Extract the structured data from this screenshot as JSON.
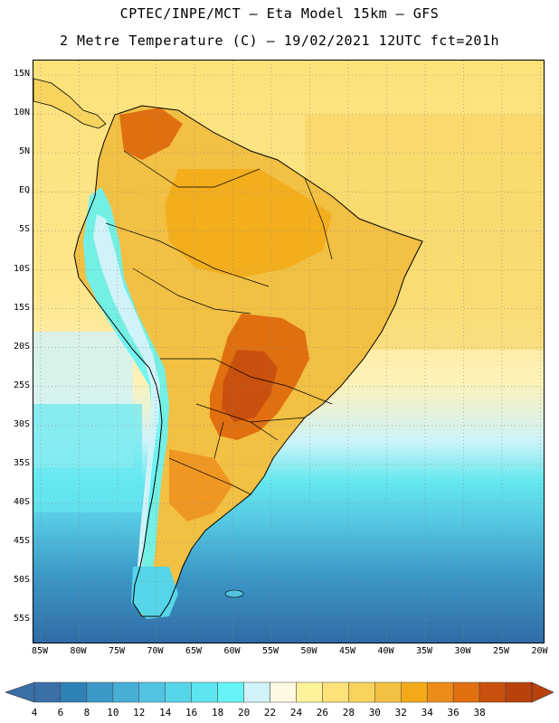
{
  "header": {
    "title_line1": "CPTEC/INPE/MCT –  Eta Model 15km – GFS",
    "title_line2": "2 Metre Temperature (C) – 19/02/2021 12UTC fct=201h"
  },
  "map": {
    "region": "South America",
    "variable": "2 Metre Temperature",
    "units": "C",
    "lat_labels": [
      "15N",
      "10N",
      "5N",
      "EQ",
      "5S",
      "10S",
      "15S",
      "20S",
      "25S",
      "30S",
      "35S",
      "40S",
      "45S",
      "50S",
      "55S"
    ],
    "lon_labels": [
      "85W",
      "80W",
      "75W",
      "70W",
      "65W",
      "60W",
      "55W",
      "50W",
      "45W",
      "40W",
      "35W",
      "30W",
      "25W",
      "20W"
    ]
  },
  "colorbar": {
    "labels": [
      "4",
      "6",
      "8",
      "10",
      "12",
      "14",
      "16",
      "18",
      "20",
      "22",
      "24",
      "26",
      "28",
      "30",
      "32",
      "34",
      "36",
      "38"
    ],
    "colors": [
      "#3a6fa8",
      "#2f82b6",
      "#3c99c7",
      "#47aed6",
      "#52c3e0",
      "#56d5e8",
      "#5ee6ef",
      "#66f4f6",
      "#cff3f8",
      "#fff8e2",
      "#fef39a",
      "#fde27a",
      "#f8d35e",
      "#f2c043",
      "#f3aa17",
      "#ee8c1a",
      "#e06f10",
      "#c9500d",
      "#b8420c"
    ]
  }
}
